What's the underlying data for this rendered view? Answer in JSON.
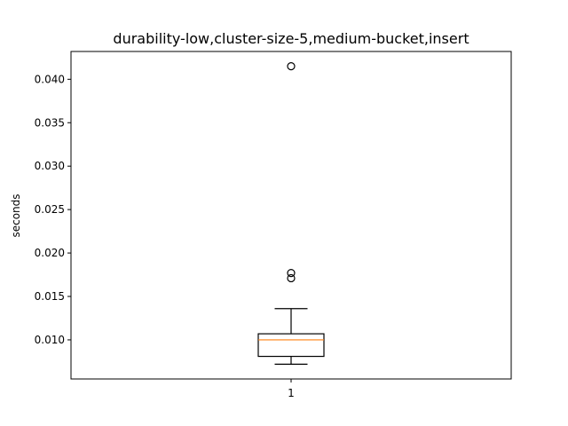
{
  "chart_data": {
    "type": "box",
    "title": "durability-low,cluster-size-5,medium-bucket,insert",
    "xlabel": "",
    "ylabel": "seconds",
    "ylim": [
      0.0055,
      0.0432
    ],
    "y_ticks": [
      0.01,
      0.015,
      0.02,
      0.025,
      0.03,
      0.035,
      0.04
    ],
    "y_tick_labels": [
      "0.010",
      "0.015",
      "0.020",
      "0.025",
      "0.030",
      "0.035",
      "0.040"
    ],
    "categories": [
      "1"
    ],
    "boxes": [
      {
        "label": "1",
        "whisker_low": 0.0072,
        "q1": 0.0081,
        "median": 0.01,
        "q3": 0.0107,
        "whisker_high": 0.0136,
        "outliers": [
          0.0415,
          0.0177,
          0.0171
        ]
      }
    ],
    "colors": {
      "box": "#000000",
      "median": "#ff7f0e",
      "outlier": "#000000"
    },
    "grid": false,
    "legend": "none"
  }
}
